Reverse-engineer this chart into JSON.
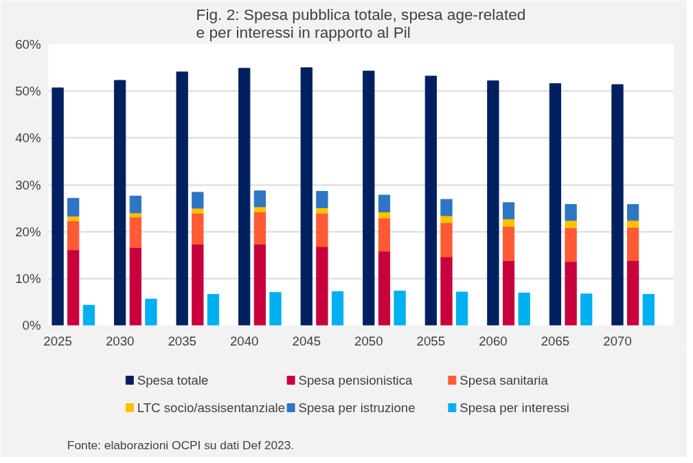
{
  "chart_data": {
    "type": "bar",
    "title": "Fig. 2: Spesa pubblica totale, spesa age-related\ne per interessi in rapporto al Pil",
    "categories": [
      "2025",
      null,
      null,
      null,
      "2030",
      null,
      null,
      null,
      "2035",
      null,
      null,
      null,
      "2040",
      null,
      null,
      null,
      "2045",
      null,
      null,
      null,
      "2050",
      null,
      null,
      null,
      "2055",
      null,
      null,
      null,
      "2060",
      null,
      null,
      null,
      "2065",
      null,
      null,
      null,
      "2070",
      null,
      null,
      null
    ],
    "stacked": true,
    "series": [
      {
        "name": "Spesa totale",
        "color": "#002060",
        "values": [
          50.7,
          null,
          null,
          null,
          52.3,
          null,
          null,
          null,
          54.1,
          null,
          null,
          null,
          54.9,
          null,
          null,
          null,
          55.0,
          null,
          null,
          null,
          54.3,
          null,
          null,
          null,
          53.2,
          null,
          null,
          null,
          52.2,
          null,
          null,
          null,
          51.6,
          null,
          null,
          null,
          51.4,
          null,
          null,
          null
        ]
      },
      {
        "name": "Spesa pensionistica",
        "color": "#c8003c",
        "values": [
          null,
          16.1,
          null,
          null,
          null,
          16.6,
          null,
          null,
          null,
          17.3,
          null,
          null,
          null,
          17.3,
          null,
          null,
          null,
          16.8,
          null,
          null,
          null,
          15.8,
          null,
          null,
          null,
          14.6,
          null,
          null,
          null,
          13.8,
          null,
          null,
          null,
          13.6,
          null,
          null,
          null,
          13.8,
          null,
          null
        ]
      },
      {
        "name": "Spesa sanitaria",
        "color": "#ff5a36",
        "values": [
          null,
          6.2,
          null,
          null,
          null,
          6.5,
          null,
          null,
          null,
          6.6,
          null,
          null,
          null,
          6.9,
          null,
          null,
          null,
          7.1,
          null,
          null,
          null,
          7.1,
          null,
          null,
          null,
          7.3,
          null,
          null,
          null,
          7.3,
          null,
          null,
          null,
          7.2,
          null,
          null,
          null,
          7.1,
          null,
          null
        ]
      },
      {
        "name": "LTC socio/assisentanziale",
        "color": "#ffc000",
        "values": [
          null,
          1.0,
          null,
          null,
          null,
          0.9,
          null,
          null,
          null,
          1.1,
          null,
          null,
          null,
          1.1,
          null,
          null,
          null,
          1.2,
          null,
          null,
          null,
          1.3,
          null,
          null,
          null,
          1.5,
          null,
          null,
          null,
          1.6,
          null,
          null,
          null,
          1.6,
          null,
          null,
          null,
          1.5,
          null,
          null
        ]
      },
      {
        "name": "Spesa per istruzione",
        "color": "#2e75c4",
        "values": [
          null,
          3.8,
          null,
          null,
          null,
          3.6,
          null,
          null,
          null,
          3.4,
          null,
          null,
          null,
          3.4,
          null,
          null,
          null,
          3.5,
          null,
          null,
          null,
          3.6,
          null,
          null,
          null,
          3.5,
          null,
          null,
          null,
          3.5,
          null,
          null,
          null,
          3.4,
          null,
          null,
          null,
          3.4,
          null,
          null
        ]
      },
      {
        "name": "Spesa per interessi",
        "color": "#00b0f0",
        "values": [
          null,
          null,
          4.3,
          null,
          null,
          null,
          5.6,
          null,
          null,
          null,
          6.6,
          null,
          null,
          null,
          7.0,
          null,
          null,
          null,
          7.2,
          null,
          null,
          null,
          7.3,
          null,
          null,
          null,
          7.1,
          null,
          null,
          null,
          6.9,
          null,
          null,
          null,
          6.7,
          null,
          null,
          null,
          6.6,
          null
        ]
      }
    ],
    "ylim": [
      0,
      60
    ],
    "yticks": [
      {
        "value": 0,
        "label": "0%"
      },
      {
        "value": 10,
        "label": "10%"
      },
      {
        "value": 20,
        "label": "20%"
      },
      {
        "value": 30,
        "label": "30%"
      },
      {
        "value": 40,
        "label": "40%"
      },
      {
        "value": 50,
        "label": "50%"
      },
      {
        "value": 60,
        "label": "60%"
      }
    ],
    "grid": "y",
    "legend": "bottom",
    "annotations": [
      "Fonte: elaborazioni OCPI su dati Def 2023."
    ]
  }
}
